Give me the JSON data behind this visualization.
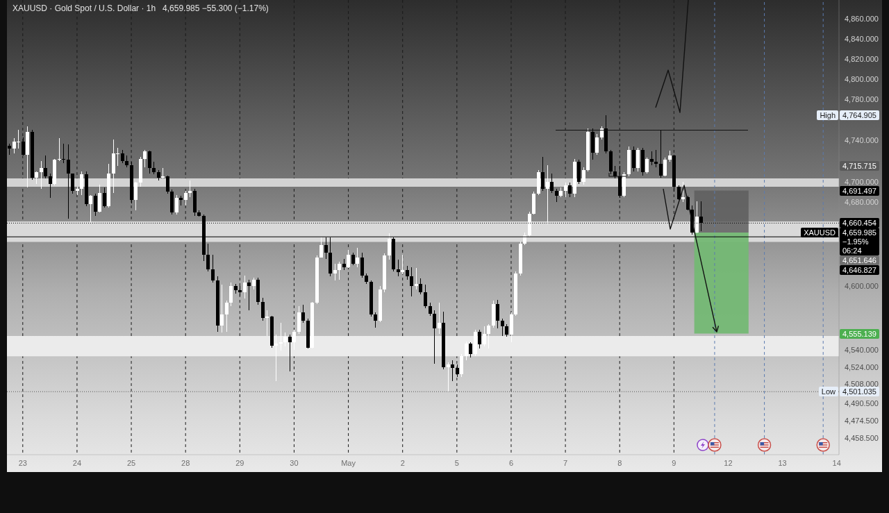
{
  "chart_data": {
    "type": "candlestick",
    "title": "XAUUSD · Gold Spot / U.S. Dollar · 1h",
    "subtitle": "4,659.985 −55.300 (−1.17%)",
    "categories": [
      null,
      null,
      null,
      "23",
      null,
      null,
      null,
      null,
      null,
      null,
      null,
      null,
      null,
      null,
      null,
      "24",
      null,
      null,
      null,
      null,
      null,
      null,
      null,
      null,
      null,
      null,
      null,
      "25",
      null,
      null,
      null,
      null,
      null,
      null,
      null,
      null,
      null,
      null,
      null,
      "28",
      null,
      null,
      null,
      null,
      null,
      null,
      null,
      null,
      null,
      null,
      null,
      "29",
      null,
      null,
      null,
      null,
      null,
      null,
      null,
      null,
      null,
      null,
      null,
      "30",
      null,
      null,
      null,
      null,
      null,
      null,
      null,
      null,
      null,
      null,
      null,
      "May",
      null,
      null,
      null,
      null,
      null,
      null,
      null,
      null,
      null,
      null,
      null,
      "2",
      null,
      null,
      null,
      null,
      null,
      null,
      null,
      null,
      null,
      null,
      null,
      "5",
      null,
      null,
      null,
      null,
      null,
      null,
      null,
      null,
      null,
      null,
      null,
      "6",
      null,
      null,
      null,
      null,
      null,
      null,
      null,
      null,
      null,
      null,
      null,
      "7",
      null,
      null,
      null,
      null,
      null,
      null,
      null,
      null,
      null,
      null,
      null,
      "8",
      null,
      null,
      null,
      null,
      null,
      null,
      null,
      null,
      null,
      null,
      null,
      "9",
      null,
      null,
      null,
      null,
      null,
      null,
      null,
      null,
      null,
      null,
      null,
      "12",
      null,
      null,
      null,
      null,
      null,
      null,
      null,
      null,
      null,
      null,
      null,
      "13",
      null,
      null,
      null,
      null,
      null,
      null,
      null,
      null,
      null,
      null,
      null,
      "14"
    ],
    "ohlc": [
      [
        4735,
        4737,
        4726,
        4732
      ],
      [
        4732,
        4742,
        4727,
        4739
      ],
      [
        4739,
        4750,
        4732,
        4739
      ],
      [
        4739,
        4743,
        4725,
        4726
      ],
      [
        4726,
        4754,
        4694,
        4748
      ],
      [
        4748,
        4750,
        4702,
        4704
      ],
      [
        4704,
        4710,
        4698,
        4709
      ],
      [
        4709,
        4720,
        4693,
        4713
      ],
      [
        4713,
        4725,
        4703,
        4705
      ],
      [
        4705,
        4708,
        4684,
        4698
      ],
      [
        4698,
        4722,
        4696,
        4721
      ],
      [
        4721,
        4742,
        4720,
        4722
      ],
      [
        4722,
        4737,
        4718,
        4721
      ],
      [
        4721,
        4736,
        4664,
        4708
      ],
      [
        4708,
        4708,
        4688,
        4691
      ],
      [
        4691,
        4695,
        4687,
        4693
      ],
      [
        4693,
        4710,
        4687,
        4707
      ],
      [
        4707,
        4710,
        4676,
        4678
      ],
      [
        4678,
        4687,
        4660,
        4686
      ],
      [
        4686,
        4688,
        4667,
        4671
      ],
      [
        4671,
        4697,
        4670,
        4689
      ],
      [
        4689,
        4694,
        4675,
        4676
      ],
      [
        4676,
        4717,
        4675,
        4708
      ],
      [
        4708,
        4741,
        4689,
        4727
      ],
      [
        4727,
        4733,
        4715,
        4727
      ],
      [
        4727,
        4731,
        4718,
        4720
      ],
      [
        4720,
        4725,
        4714,
        4716
      ],
      [
        4716,
        4719,
        4679,
        4682
      ],
      [
        4682,
        4700,
        4672,
        4699
      ],
      [
        4699,
        4724,
        4695,
        4722
      ],
      [
        4722,
        4731,
        4714,
        4729
      ],
      [
        4729,
        4730,
        4708,
        4713
      ],
      [
        4713,
        4719,
        4707,
        4709
      ],
      [
        4709,
        4711,
        4701,
        4704
      ],
      [
        4704,
        4713,
        4703,
        4705
      ],
      [
        4705,
        4706,
        4688,
        4690
      ],
      [
        4690,
        4692,
        4668,
        4670
      ],
      [
        4670,
        4687,
        4668,
        4684
      ],
      [
        4684,
        4686,
        4677,
        4682
      ],
      [
        4682,
        4691,
        4677,
        4689
      ],
      [
        4689,
        4701,
        4685,
        4691
      ],
      [
        4691,
        4693,
        4667,
        4670
      ],
      [
        4670,
        4672,
        4666,
        4667
      ],
      [
        4667,
        4668,
        4624,
        4630
      ],
      [
        4630,
        4640,
        4614,
        4616
      ],
      [
        4616,
        4630,
        4603,
        4605
      ],
      [
        4605,
        4609,
        4557,
        4563
      ],
      [
        4563,
        4601,
        4556,
        4573
      ],
      [
        4573,
        4586,
        4557,
        4584
      ],
      [
        4584,
        4603,
        4581,
        4600
      ],
      [
        4600,
        4602,
        4593,
        4596
      ],
      [
        4596,
        4600,
        4591,
        4594
      ],
      [
        4594,
        4610,
        4588,
        4603
      ],
      [
        4603,
        4606,
        4577,
        4600
      ],
      [
        4600,
        4608,
        4597,
        4606
      ],
      [
        4606,
        4608,
        4582,
        4585
      ],
      [
        4585,
        4589,
        4567,
        4570
      ],
      [
        4570,
        4577,
        4553,
        4571
      ],
      [
        4571,
        4572,
        4542,
        4544
      ],
      [
        4544,
        4554,
        4511,
        4546
      ],
      [
        4546,
        4565,
        4539,
        4547
      ],
      [
        4547,
        4556,
        4543,
        4552
      ],
      [
        4552,
        4554,
        4520,
        4547
      ],
      [
        4547,
        4559,
        4540,
        4557
      ],
      [
        4557,
        4581,
        4555,
        4575
      ],
      [
        4575,
        4582,
        4565,
        4567
      ],
      [
        4567,
        4569,
        4541,
        4542
      ],
      [
        4542,
        4585,
        4541,
        4584
      ],
      [
        4584,
        4629,
        4583,
        4627
      ],
      [
        4627,
        4646,
        4627,
        4639
      ],
      [
        4639,
        4646,
        4626,
        4632
      ],
      [
        4632,
        4646,
        4609,
        4612
      ],
      [
        4612,
        4621,
        4605,
        4615
      ],
      [
        4615,
        4623,
        4606,
        4621
      ],
      [
        4621,
        4626,
        4615,
        4618
      ],
      [
        4618,
        4634,
        4617,
        4630
      ],
      [
        4630,
        4632,
        4620,
        4621
      ],
      [
        4621,
        4636,
        4618,
        4627
      ],
      [
        4627,
        4632,
        4608,
        4610
      ],
      [
        4610,
        4612,
        4602,
        4604
      ],
      [
        4604,
        4605,
        4571,
        4573
      ],
      [
        4573,
        4575,
        4561,
        4567
      ],
      [
        4567,
        4600,
        4566,
        4597
      ],
      [
        4597,
        4631,
        4594,
        4629
      ],
      [
        4629,
        4650,
        4625,
        4645
      ],
      [
        4645,
        4646,
        4614,
        4616
      ],
      [
        4616,
        4625,
        4609,
        4613
      ],
      [
        4613,
        4630,
        4611,
        4615
      ],
      [
        4615,
        4619,
        4606,
        4609
      ],
      [
        4609,
        4618,
        4590,
        4600
      ],
      [
        4600,
        4617,
        4597,
        4602
      ],
      [
        4602,
        4607,
        4592,
        4594
      ],
      [
        4594,
        4601,
        4579,
        4581
      ],
      [
        4581,
        4584,
        4572,
        4574
      ],
      [
        4574,
        4577,
        4527,
        4560
      ],
      [
        4560,
        4584,
        4555,
        4565
      ],
      [
        4565,
        4576,
        4522,
        4524
      ],
      [
        4524,
        4528,
        4501.035,
        4526
      ],
      [
        4526,
        4530,
        4511,
        4523
      ],
      [
        4523,
        4526,
        4515,
        4517
      ],
      [
        4517,
        4536,
        4515,
        4534
      ],
      [
        4534,
        4548,
        4530,
        4546
      ],
      [
        4546,
        4547,
        4533,
        4536
      ],
      [
        4536,
        4559,
        4534,
        4557
      ],
      [
        4557,
        4559,
        4541,
        4545
      ],
      [
        4545,
        4562,
        4543,
        4555
      ],
      [
        4555,
        4564,
        4541,
        4563
      ],
      [
        4563,
        4586,
        4561,
        4583
      ],
      [
        4583,
        4587,
        4560,
        4567
      ],
      [
        4567,
        4569,
        4553,
        4562
      ],
      [
        4562,
        4564,
        4552,
        4554
      ],
      [
        4554,
        4575,
        4547,
        4573
      ],
      [
        4573,
        4614,
        4572,
        4612
      ],
      [
        4612,
        4642,
        4610,
        4640
      ],
      [
        4640,
        4651,
        4639,
        4648
      ],
      [
        4648,
        4671,
        4647,
        4669
      ],
      [
        4669,
        4690,
        4668,
        4688
      ],
      [
        4688,
        4711,
        4687,
        4709
      ],
      [
        4709,
        4724,
        4691,
        4693
      ],
      [
        4693,
        4716,
        4659,
        4700
      ],
      [
        4700,
        4708,
        4689,
        4691
      ],
      [
        4691,
        4693,
        4680,
        4686
      ],
      [
        4686,
        4694,
        4685,
        4691
      ],
      [
        4691,
        4699,
        4685,
        4696
      ],
      [
        4696,
        4699,
        4685,
        4688
      ],
      [
        4688,
        4722,
        4685,
        4719
      ],
      [
        4719,
        4721,
        4698,
        4700
      ],
      [
        4700,
        4714,
        4697,
        4711
      ],
      [
        4711,
        4752,
        4710,
        4748
      ],
      [
        4748,
        4752,
        4721,
        4728
      ],
      [
        4728,
        4746,
        4726,
        4743
      ],
      [
        4743,
        4754,
        4741,
        4752
      ],
      [
        4752,
        4764.905,
        4727,
        4729
      ],
      [
        4729,
        4731,
        4707,
        4710
      ],
      [
        4710,
        4715,
        4703,
        4705
      ],
      [
        4705,
        4715,
        4684,
        4686
      ],
      [
        4686,
        4709,
        4685,
        4707
      ],
      [
        4707,
        4734,
        4705,
        4731
      ],
      [
        4731,
        4734,
        4710,
        4713
      ],
      [
        4713,
        4733,
        4710,
        4731
      ],
      [
        4731,
        4733,
        4706,
        4709
      ],
      [
        4709,
        4723,
        4708,
        4722
      ],
      [
        4722,
        4729,
        4716,
        4719
      ],
      [
        4719,
        4731,
        4714,
        4717
      ],
      [
        4717,
        4750,
        4704,
        4706
      ],
      [
        4706,
        4723,
        4705,
        4721
      ],
      [
        4721,
        4730,
        4719,
        4725
      ],
      [
        4725,
        4726,
        4690,
        4695
      ],
      [
        4695,
        4696,
        4682,
        4683
      ],
      [
        4683,
        4700,
        4680,
        4685
      ],
      [
        4685,
        4686,
        4672,
        4673
      ],
      [
        4673,
        4677,
        4649,
        4651
      ],
      [
        4651,
        4681,
        4650,
        4666
      ],
      [
        4666,
        4681,
        4652,
        4659.985
      ],
      null,
      null,
      null,
      null,
      null,
      null,
      null,
      null,
      null,
      null,
      null,
      null,
      null,
      null,
      null,
      null,
      null,
      null,
      null,
      null,
      null,
      null,
      null,
      null,
      null,
      null,
      null,
      null,
      null,
      null
    ],
    "colors": [
      "#000000",
      "#ffffff",
      "#ffffff",
      "#000000",
      "#ffffff",
      "#000000",
      "#ffffff",
      "#ffffff",
      "#000000",
      "#000000",
      "#ffffff",
      "#ffffff",
      "#000000",
      "#000000",
      "#000000",
      "#ffffff",
      "#ffffff",
      "#000000",
      "#ffffff",
      "#000000",
      "#ffffff",
      "#000000",
      "#ffffff",
      "#ffffff",
      "#ffffff",
      "#000000",
      "#000000",
      "#000000",
      "#ffffff",
      "#ffffff",
      "#ffffff",
      "#000000",
      "#000000",
      "#000000",
      "#ffffff",
      "#000000",
      "#000000",
      "#ffffff",
      "#000000",
      "#ffffff",
      "#ffffff",
      "#000000",
      "#000000",
      "#000000",
      "#000000",
      "#000000",
      "#000000",
      "#ffffff",
      "#ffffff",
      "#ffffff",
      "#000000",
      "#000000",
      "#ffffff",
      "#000000",
      "#ffffff",
      "#000000",
      "#000000",
      "#ffffff",
      "#000000",
      "#ffffff",
      "#ffffff",
      "#ffffff",
      "#000000",
      "#ffffff",
      "#ffffff",
      "#000000",
      "#000000",
      "#ffffff",
      "#ffffff",
      "#ffffff",
      "#000000",
      "#000000",
      "#ffffff",
      "#ffffff",
      "#000000",
      "#ffffff",
      "#000000",
      "#ffffff",
      "#000000",
      "#000000",
      "#000000",
      "#000000",
      "#ffffff",
      "#ffffff",
      "#ffffff",
      "#000000",
      "#000000",
      "#ffffff",
      "#000000",
      "#000000",
      "#ffffff",
      "#000000",
      "#000000",
      "#000000",
      "#000000",
      "#ffffff",
      "#000000",
      "#ffffff",
      "#000000",
      "#000000",
      "#ffffff",
      "#ffffff",
      "#000000",
      "#ffffff",
      "#000000",
      "#ffffff",
      "#ffffff",
      "#ffffff",
      "#000000",
      "#000000",
      "#000000",
      "#ffffff",
      "#ffffff",
      "#ffffff",
      "#ffffff",
      "#ffffff",
      "#ffffff",
      "#ffffff",
      "#000000",
      "#ffffff",
      "#000000",
      "#000000",
      "#ffffff",
      "#ffffff",
      "#000000",
      "#ffffff",
      "#000000",
      "#ffffff",
      "#ffffff",
      "#000000",
      "#ffffff",
      "#ffffff",
      "#000000",
      "#000000",
      "#000000",
      "#000000",
      "#ffffff",
      "#ffffff",
      "#000000",
      "#ffffff",
      "#000000",
      "#ffffff",
      "#000000",
      "#000000",
      "#000000",
      "#ffffff",
      "#ffffff",
      "#000000",
      "#000000",
      "#ffffff",
      "#000000",
      "#000000",
      "#ffffff",
      "#000000",
      null,
      null,
      null,
      null,
      null,
      null,
      null,
      null,
      null,
      null,
      null,
      null,
      null,
      null,
      null,
      null,
      null,
      null,
      null,
      null,
      null,
      null,
      null,
      null,
      null,
      null,
      null,
      null,
      null,
      null
    ],
    "log": true,
    "ylim": [
      4443,
      4879
    ],
    "yticks": [
      {
        "value": 4860,
        "label": "4,860.000"
      },
      {
        "value": 4840,
        "label": "4,840.000"
      },
      {
        "value": 4820,
        "label": "4,820.000"
      },
      {
        "value": 4800,
        "label": "4,800.000"
      },
      {
        "value": 4780,
        "label": "4,780.000"
      },
      {
        "value": 4740,
        "label": "4,740.000"
      },
      {
        "value": 4700,
        "label": "4,700.000"
      },
      {
        "value": 4680,
        "label": "4,680.000"
      },
      {
        "value": 4600,
        "label": "4,600.000"
      },
      {
        "value": 4540,
        "label": "4,540.000"
      },
      {
        "value": 4524,
        "label": "4,524.000"
      },
      {
        "value": 4508,
        "label": "4,508.000"
      },
      {
        "value": 4490.5,
        "label": "4,490.500"
      },
      {
        "value": 4474.5,
        "label": "4,474.500"
      },
      {
        "value": 4458.5,
        "label": "4,458.500"
      }
    ],
    "grid": "x",
    "bands": [
      {
        "axis": "y",
        "from": 4695,
        "to": 4703,
        "color": "#d3d3d3"
      },
      {
        "axis": "y",
        "from": 4642,
        "to": 4661.5,
        "color": "#d9d9d9"
      },
      {
        "axis": "y",
        "from": 4534,
        "to": 4553,
        "color": "#ebebeb"
      }
    ],
    "ref_lines": [
      {
        "axis": "y",
        "value": 4659.985,
        "label": "4,659.985",
        "color": "#000000",
        "line_style": "dotted"
      },
      {
        "axis": "y",
        "value": 4646.827,
        "color": "#000000",
        "line_style": "solid"
      },
      {
        "axis": "y",
        "value": 4501.035,
        "label": "4,501.035",
        "color": "#555555",
        "line_style": "dotted"
      }
    ],
    "annotations": [
      {
        "text": "High",
        "y": 4764.905
      },
      {
        "text": "XAUUSD",
        "y": 4659.985
      },
      {
        "text": "Low",
        "y": 4501.035
      },
      "4,764.905",
      "4,715.715",
      "4,691.497",
      "4,660.454",
      "−1.95%",
      "06:24",
      "4,651.646",
      "4,646.827",
      "4,555.139"
    ]
  }
}
